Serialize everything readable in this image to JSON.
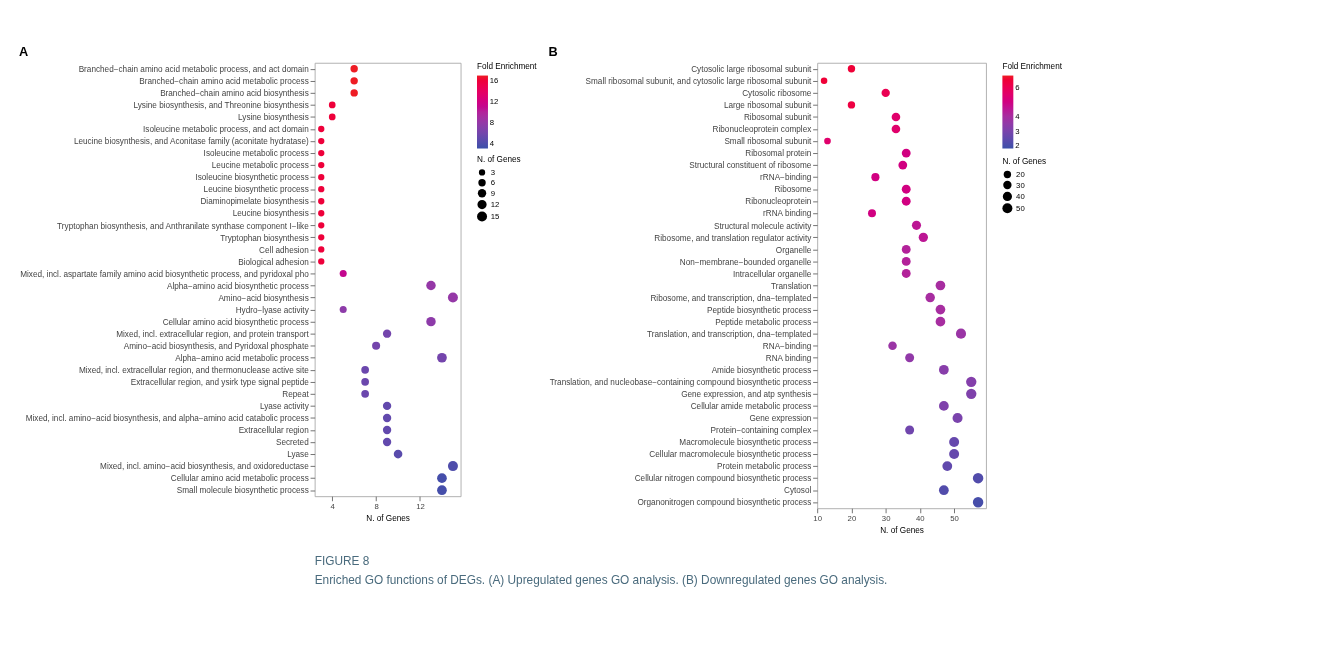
{
  "chart_data": [
    {
      "type": "bubble",
      "orientation": "horizontal",
      "title": "A",
      "xlabel": "N. of Genes",
      "legend_title": "N. of Genes",
      "clabel": "Fold Enrichment",
      "grid": false,
      "marker": "circle",
      "categories": [
        "Branched−chain amino acid metabolic process, and act domain",
        "Branched−chain amino acid metabolic process",
        "Branched−chain amino acid biosynthesis",
        "Lysine biosynthesis, and Threonine biosynthesis",
        "Lysine biosynthesis",
        "Isoleucine metabolic process, and act domain",
        "Leucine biosynthesis, and Aconitase family (aconitate hydratase)",
        "Isoleucine metabolic process",
        "Leucine metabolic process",
        "Isoleucine biosynthetic process",
        "Leucine biosynthetic process",
        "Diaminopimelate biosynthesis",
        "Leucine biosynthesis",
        "Tryptophan biosynthesis, and Anthranilate synthase component I−like",
        "Tryptophan biosynthesis",
        "Cell adhesion",
        "Biological adhesion",
        "Mixed, incl. aspartate family amino acid biosynthetic process, and pyridoxal pho",
        "Alpha−amino acid biosynthetic process",
        "Amino−acid biosynthesis",
        "Hydro−lyase activity",
        "Cellular amino acid biosynthetic process",
        "Mixed, incl. extracellular region, and protein transport",
        "Amino−acid biosynthesis, and Pyridoxal phosphate",
        "Alpha−amino acid metabolic process",
        "Mixed, incl. extracellular region, and thermonuclease active site",
        "Extracellular region, and ysirk type signal peptide",
        "Repeat",
        "Lyase activity",
        "Mixed, incl. amino−acid biosynthesis, and alpha−amino acid catabolic process",
        "Extracellular region",
        "Secreted",
        "Lyase",
        "Mixed, incl. amino−acid biosynthesis, and oxidoreductase",
        "Cellular amino acid metabolic process",
        "Small molecule biosynthetic process"
      ],
      "values": [
        6,
        6,
        6,
        4,
        4,
        3,
        3,
        3,
        3,
        3,
        3,
        3,
        3,
        3,
        3,
        3,
        3,
        5,
        13,
        15,
        5,
        13,
        9,
        8,
        14,
        7,
        7,
        7,
        9,
        9,
        9,
        9,
        10,
        15,
        14,
        14
      ],
      "sizes": [
        6,
        6,
        6,
        4,
        4,
        3,
        3,
        3,
        3,
        3,
        3,
        3,
        3,
        3,
        3,
        3,
        3,
        5,
        13,
        15,
        5,
        13,
        9,
        8,
        14,
        7,
        7,
        7,
        9,
        9,
        9,
        9,
        10,
        15,
        14,
        14
      ],
      "size_legend": [
        3,
        6,
        9,
        12,
        15
      ],
      "cvalues": [
        17,
        17,
        17,
        16,
        16,
        16,
        16,
        16,
        16,
        16,
        16,
        16,
        16,
        16,
        16,
        16,
        16,
        11,
        8,
        8,
        7.5,
        7.5,
        6,
        6,
        6,
        5.5,
        5.5,
        5.5,
        5,
        5,
        5,
        5,
        4.5,
        4,
        3.5,
        3.5
      ],
      "clim": [
        3,
        17
      ],
      "cticks": [
        4,
        8,
        12,
        16
      ],
      "xlim": [
        2.4,
        15.7
      ],
      "xticks": [
        4,
        8,
        12
      ],
      "annotations": [
        "FIGURE 8",
        "Enriched GO functions of DEGs. (A) Upregulated genes GO analysis. (B) Downregulated genes GO analysis."
      ]
    },
    {
      "type": "bubble",
      "orientation": "horizontal",
      "title": "B",
      "xlabel": "N. of Genes",
      "legend_title": "N. of Genes",
      "clabel": "Fold Enrichment",
      "grid": false,
      "marker": "circle",
      "categories": [
        "Cytosolic large ribosomal subunit",
        "Small ribosomal subunit, and cytosolic large ribosomal subunit",
        "Cytosolic ribosome",
        "Large ribosomal subunit",
        "Ribosomal subunit",
        "Ribonucleoprotein complex",
        "Small ribosomal subunit",
        "Ribosomal protein",
        "Structural constituent of ribosome",
        "rRNA−binding",
        "Ribosome",
        "Ribonucleoprotein",
        "rRNA binding",
        "Structural molecule activity",
        "Ribosome, and translation regulator activity",
        "Organelle",
        "Non−membrane−bounded organelle",
        "Intracellular organelle",
        "Translation",
        "Ribosome, and transcription, dna−templated",
        "Peptide biosynthetic process",
        "Peptide metabolic process",
        "Translation, and transcription, dna−templated",
        "RNA−binding",
        "RNA binding",
        "Amide biosynthetic process",
        "Translation, and nucleobase−containing compound biosynthetic process",
        "Gene expression, and atp synthesis",
        "Cellular amide metabolic process",
        "Gene expression",
        "Protein−containing complex",
        "Macromolecule biosynthetic process",
        "Cellular macromolecule biosynthetic process",
        "Protein metabolic process",
        "Cellular nitrogen compound biosynthetic process",
        "Cytosol",
        "Organonitrogen compound biosynthetic process"
      ],
      "values": [
        20,
        12,
        30,
        20,
        33,
        33,
        13,
        36,
        35,
        27,
        36,
        36,
        26,
        39,
        41,
        36,
        36,
        36,
        46,
        43,
        46,
        46,
        52,
        32,
        37,
        47,
        55,
        55,
        47,
        51,
        37,
        50,
        50,
        48,
        57,
        47,
        57
      ],
      "sizes": [
        20,
        12,
        30,
        20,
        33,
        33,
        13,
        36,
        35,
        27,
        36,
        36,
        26,
        39,
        41,
        36,
        36,
        36,
        46,
        43,
        46,
        46,
        52,
        32,
        37,
        47,
        55,
        55,
        47,
        51,
        37,
        50,
        50,
        48,
        57,
        47,
        57
      ],
      "size_legend": [
        20,
        30,
        40,
        50
      ],
      "cvalues": [
        6.5,
        6.5,
        6,
        6.3,
        5.5,
        5.5,
        5.5,
        5,
        5,
        5,
        5,
        5,
        5,
        4.5,
        4.5,
        4.3,
        4.3,
        4.3,
        4,
        4,
        4,
        4,
        3.7,
        3.7,
        3.5,
        3.3,
        3.2,
        3.1,
        3.1,
        3,
        2.8,
        2.6,
        2.6,
        2.5,
        2.2,
        2.2,
        2
      ],
      "clim": [
        1.8,
        6.8
      ],
      "cticks": [
        2,
        3,
        4,
        6
      ],
      "xlim": [
        10,
        59.3
      ],
      "xticks": [
        10,
        20,
        30,
        40,
        50
      ]
    }
  ]
}
